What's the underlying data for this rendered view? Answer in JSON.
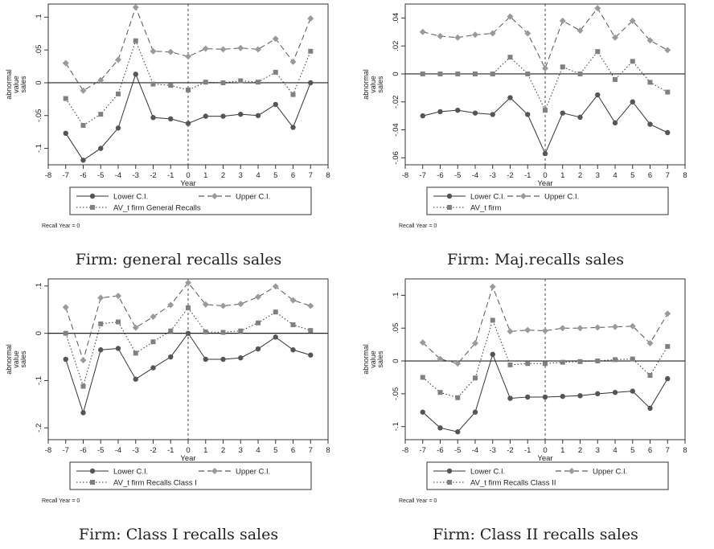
{
  "chart_data": [
    {
      "type": "line",
      "caption": "Firm: general recalls sales",
      "ylabel": [
        "abnormal",
        "value",
        "sales"
      ],
      "xlabel": "Year",
      "note": "Recall Year = 0",
      "x": [
        -7,
        -6,
        -5,
        -4,
        -3,
        -2,
        -1,
        0,
        1,
        2,
        3,
        4,
        5,
        6,
        7
      ],
      "xticks": [
        "-8",
        "-7",
        "-6",
        "-5",
        "-4",
        "-3",
        "-2",
        "-1",
        "0",
        "1",
        "2",
        "3",
        "4",
        "5",
        "6",
        "7",
        "8"
      ],
      "xlim": [
        -8,
        8
      ],
      "ylim": [
        -0.125,
        0.12
      ],
      "yticks": [
        -0.1,
        -0.05,
        0,
        0.05,
        0.1
      ],
      "ytick_labels": [
        "-.1",
        "-.05",
        "0",
        ".05",
        ".1"
      ],
      "legend_rows": 2,
      "series": [
        {
          "name": "Lower C.I.",
          "style": "solid",
          "marker": "circle",
          "color": "#555555",
          "values": [
            -0.077,
            -0.118,
            -0.1,
            -0.069,
            0.013,
            -0.053,
            -0.055,
            -0.062,
            -0.051,
            -0.051,
            -0.048,
            -0.05,
            -0.033,
            -0.068,
            0.0
          ]
        },
        {
          "name": "Upper C.I.",
          "style": "dashed",
          "marker": "diamond",
          "color": "#9a9a9a",
          "values": [
            0.03,
            -0.012,
            0.004,
            0.035,
            0.115,
            0.048,
            0.047,
            0.04,
            0.052,
            0.051,
            0.053,
            0.051,
            0.067,
            0.032,
            0.098
          ]
        },
        {
          "name": "AV_t firm General Recalls",
          "style": "dotted",
          "marker": "square",
          "color": "#808080",
          "values": [
            -0.024,
            -0.065,
            -0.048,
            -0.017,
            0.064,
            -0.002,
            -0.004,
            -0.011,
            0.001,
            0.0,
            0.003,
            0.001,
            0.016,
            -0.018,
            0.048
          ]
        }
      ]
    },
    {
      "type": "line",
      "caption": "Firm: Maj.recalls sales",
      "ylabel": [
        "abnormal",
        "value",
        "sales"
      ],
      "xlabel": "Year",
      "note": "Recall Year = 0",
      "x": [
        -7,
        -6,
        -5,
        -4,
        -3,
        -2,
        -1,
        0,
        1,
        2,
        3,
        4,
        5,
        6,
        7
      ],
      "xticks": [
        "-8",
        "-7",
        "-6",
        "-5",
        "-4",
        "-3",
        "-2",
        "-1",
        "0",
        "1",
        "2",
        "3",
        "4",
        "5",
        "6",
        "7",
        "8"
      ],
      "xlim": [
        -8,
        8
      ],
      "ylim": [
        -0.065,
        0.05
      ],
      "yticks": [
        -0.06,
        -0.04,
        -0.02,
        0,
        0.02,
        0.04
      ],
      "ytick_labels": [
        "-.06",
        "-.04",
        "-.02",
        "0",
        ".02",
        ".04"
      ],
      "legend_rows": 2,
      "series": [
        {
          "name": "Lower C.I.",
          "style": "solid",
          "marker": "circle",
          "color": "#555555",
          "values": [
            -0.03,
            -0.027,
            -0.026,
            -0.028,
            -0.029,
            -0.017,
            -0.029,
            -0.057,
            -0.028,
            -0.031,
            -0.015,
            -0.035,
            -0.02,
            -0.036,
            -0.042
          ]
        },
        {
          "name": "Upper C.I.",
          "style": "dashed",
          "marker": "diamond",
          "color": "#9a9a9a",
          "values": [
            0.03,
            0.027,
            0.026,
            0.028,
            0.029,
            0.041,
            0.029,
            0.004,
            0.038,
            0.031,
            0.047,
            0.026,
            0.038,
            0.024,
            0.017
          ]
        },
        {
          "name": "AV_t firm",
          "style": "dotted",
          "marker": "square",
          "color": "#808080",
          "values": [
            0.0,
            0.0,
            0.0,
            0.0,
            0.0,
            0.012,
            0.0,
            -0.026,
            0.005,
            0.0,
            0.016,
            -0.004,
            0.009,
            -0.006,
            -0.013
          ]
        }
      ]
    },
    {
      "type": "line",
      "caption": "Firm: Class I recalls sales",
      "ylabel": [
        "abnormal",
        "value",
        "sales"
      ],
      "xlabel": "Year",
      "note": "Recall Year = 0",
      "x": [
        -7,
        -6,
        -5,
        -4,
        -3,
        -2,
        -1,
        0,
        1,
        2,
        3,
        4,
        5,
        6,
        7
      ],
      "xticks": [
        "-8",
        "-7",
        "-6",
        "-5",
        "-4",
        "-3",
        "-2",
        "-1",
        "0",
        "1",
        "2",
        "3",
        "4",
        "5",
        "6",
        "7",
        "8"
      ],
      "xlim": [
        -8,
        8
      ],
      "ylim": [
        -0.225,
        0.115
      ],
      "yticks": [
        -0.2,
        -0.1,
        0,
        0.1
      ],
      "ytick_labels": [
        "-.2",
        "-.1",
        "0",
        ".1"
      ],
      "legend_rows": 2,
      "series": [
        {
          "name": "Lower C.I.",
          "style": "solid",
          "marker": "circle",
          "color": "#555555",
          "values": [
            -0.055,
            -0.168,
            -0.035,
            -0.032,
            -0.097,
            -0.073,
            -0.05,
            0.0,
            -0.055,
            -0.055,
            -0.052,
            -0.033,
            -0.008,
            -0.035,
            -0.046
          ]
        },
        {
          "name": "Upper C.I.",
          "style": "dashed",
          "marker": "diamond",
          "color": "#9a9a9a",
          "values": [
            0.055,
            -0.057,
            0.075,
            0.079,
            0.012,
            0.035,
            0.06,
            0.107,
            0.061,
            0.058,
            0.062,
            0.077,
            0.099,
            0.07,
            0.058
          ]
        },
        {
          "name": "AV_t firm Recalls Class I",
          "style": "dotted",
          "marker": "square",
          "color": "#808080",
          "values": [
            0.0,
            -0.112,
            0.02,
            0.024,
            -0.042,
            -0.018,
            0.005,
            0.054,
            0.003,
            0.002,
            0.005,
            0.022,
            0.045,
            0.018,
            0.006
          ]
        }
      ]
    },
    {
      "type": "line",
      "caption": "Firm: Class II recalls sales",
      "ylabel": [
        "abnormal",
        "value",
        "sales"
      ],
      "xlabel": "Year",
      "note": "Recall Year = 0",
      "x": [
        -7,
        -6,
        -5,
        -4,
        -3,
        -2,
        -1,
        0,
        1,
        2,
        3,
        4,
        5,
        6,
        7
      ],
      "xticks": [
        "-8",
        "-7",
        "-6",
        "-5",
        "-4",
        "-3",
        "-2",
        "-1",
        "0",
        "1",
        "2",
        "3",
        "4",
        "5",
        "6",
        "7",
        "8"
      ],
      "xlim": [
        -8,
        8
      ],
      "ylim": [
        -0.12,
        0.125
      ],
      "yticks": [
        -0.1,
        -0.05,
        0,
        0.05,
        0.1
      ],
      "ytick_labels": [
        "-.1",
        "-.05",
        "0",
        ".05",
        ".1"
      ],
      "legend_rows": 2,
      "series": [
        {
          "name": "Lower C.I.",
          "style": "solid",
          "marker": "circle",
          "color": "#555555",
          "values": [
            -0.078,
            -0.102,
            -0.108,
            -0.078,
            0.01,
            -0.057,
            -0.055,
            -0.055,
            -0.054,
            -0.053,
            -0.05,
            -0.048,
            -0.046,
            -0.072,
            -0.027
          ]
        },
        {
          "name": "Upper C.I.",
          "style": "dashed",
          "marker": "diamond",
          "color": "#9a9a9a",
          "values": [
            0.028,
            0.003,
            -0.004,
            0.027,
            0.113,
            0.045,
            0.047,
            0.046,
            0.05,
            0.05,
            0.051,
            0.052,
            0.053,
            0.027,
            0.072
          ]
        },
        {
          "name": "AV_t firm Recalls Class II",
          "style": "dotted",
          "marker": "square",
          "color": "#808080",
          "values": [
            -0.025,
            -0.048,
            -0.056,
            -0.026,
            0.062,
            -0.006,
            -0.004,
            -0.004,
            -0.002,
            -0.001,
            0.0,
            0.002,
            0.003,
            -0.022,
            0.022
          ]
        }
      ]
    }
  ]
}
